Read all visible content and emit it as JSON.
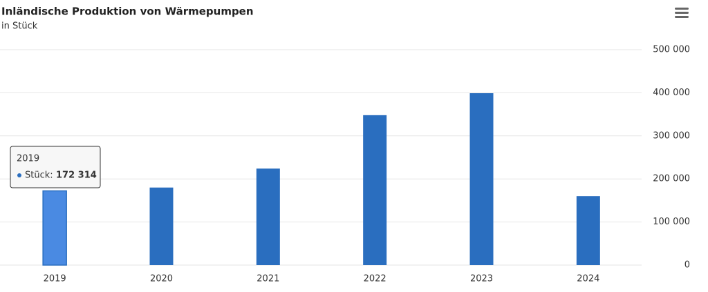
{
  "chart_data": {
    "type": "bar",
    "title": "Inländische Produktion von Wärmepumpen",
    "subtitle": "in Stück",
    "categories": [
      "2019",
      "2020",
      "2021",
      "2022",
      "2023",
      "2024"
    ],
    "series": [
      {
        "name": "Stück",
        "color": "#2a6ebf",
        "values": [
          172314,
          180000,
          224000,
          348000,
          399000,
          160000
        ],
        "value_labels": [
          "172 314",
          null,
          null,
          null,
          null,
          null
        ]
      }
    ],
    "tooltip_label": "Stück:",
    "ylim": [
      0,
      500000
    ],
    "yticks": [
      0,
      {
        "value": 100000,
        "label": "100 000"
      },
      {
        "value": 200000,
        "label": "200 000"
      },
      {
        "value": 300000,
        "label": "300 000"
      },
      {
        "value": 400000,
        "label": "400 000"
      },
      {
        "value": 500000,
        "label": "500 000"
      }
    ],
    "grid": true
  }
}
